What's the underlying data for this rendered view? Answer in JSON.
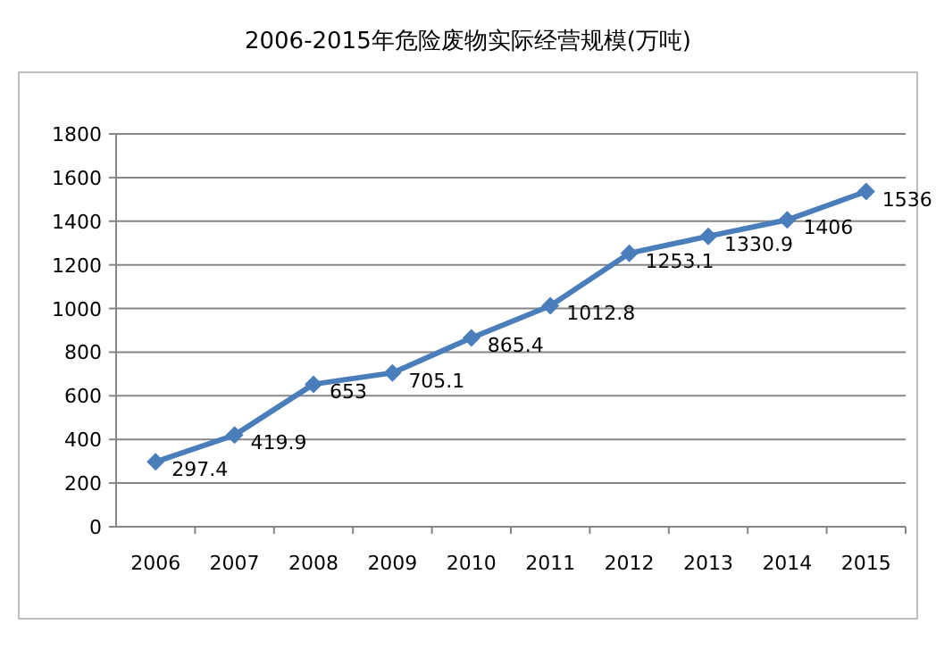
{
  "chart_data": {
    "type": "line",
    "title": "2006-2015年危险废物实际经营规模(万吨)",
    "categories": [
      "2006",
      "2007",
      "2008",
      "2009",
      "2010",
      "2011",
      "2012",
      "2013",
      "2014",
      "2015"
    ],
    "values": [
      297.4,
      419.9,
      653,
      705.1,
      865.4,
      1012.8,
      1253.1,
      1330.9,
      1406,
      1536
    ],
    "color": "#4a7ebb",
    "ylim": [
      0,
      1800
    ],
    "yticks": [
      0,
      200,
      400,
      600,
      800,
      1000,
      1200,
      1400,
      1600,
      1800
    ],
    "grid": "y",
    "marker": "diamond",
    "data_labels": true
  }
}
